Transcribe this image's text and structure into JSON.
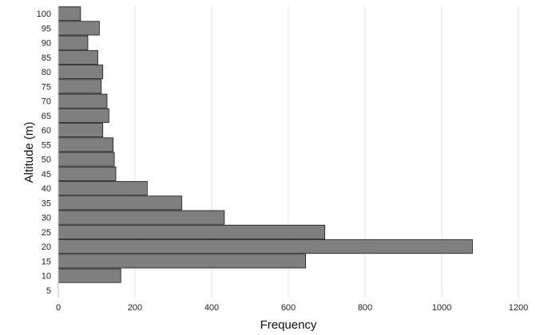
{
  "chart_data": {
    "type": "bar",
    "orientation": "horizontal",
    "title": "",
    "xlabel": "Frequency",
    "ylabel": "Altitude (m)",
    "categories": [
      "100",
      "95",
      "90",
      "85",
      "80",
      "75",
      "70",
      "65",
      "60",
      "55",
      "50",
      "45",
      "40",
      "35",
      "30",
      "25",
      "20",
      "15",
      "10",
      "5"
    ],
    "values": [
      58,
      107,
      77,
      103,
      116,
      112,
      127,
      132,
      116,
      143,
      146,
      150,
      232,
      322,
      433,
      695,
      1080,
      645,
      163,
      0
    ],
    "xlim": [
      0,
      1200
    ],
    "xticks": [
      "0",
      "200",
      "400",
      "600",
      "800",
      "1000",
      "1200"
    ],
    "grid": "vertical",
    "legend": "none",
    "colors": {
      "bar_fill": "#7f7f7f",
      "bar_stroke": "#1a1a1a",
      "grid": "#e3e3e3"
    }
  }
}
